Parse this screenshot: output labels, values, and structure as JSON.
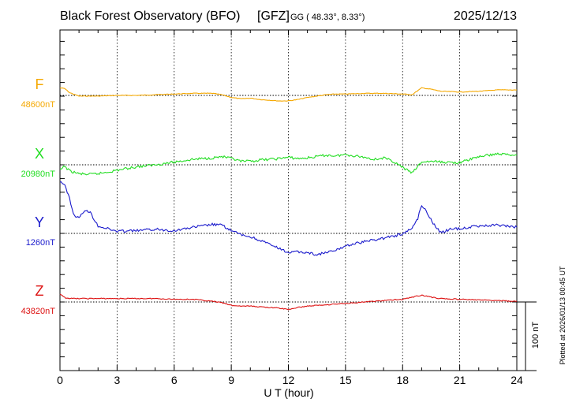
{
  "header": {
    "observatory": "Black Forest Observatory (BFO)",
    "institute": "[GFZ]",
    "coords": "GG ( 48.33°,  8.33°)",
    "date": "2025/12/13"
  },
  "footer": {
    "plotted": "Plotted at 2026/01/13 00:45 UT",
    "scale": "100 nT"
  },
  "chart_data": {
    "type": "line",
    "title": "Black Forest Observatory (BFO)",
    "xlabel": "U T (hour)",
    "ylabel": "",
    "xlim": [
      0,
      24
    ],
    "xticks": [
      "0",
      "3",
      "6",
      "9",
      "12",
      "15",
      "18",
      "21",
      "24"
    ],
    "grid": true,
    "scale_bar_nT": 100,
    "series": [
      {
        "name": "F",
        "baseline_label": "48600nT",
        "color": "#f5a800",
        "baseline": 48600,
        "x": [
          0,
          0.25,
          0.5,
          1,
          1.5,
          2,
          3,
          4,
          5,
          6,
          7,
          8,
          8.5,
          9,
          9.5,
          10,
          10.5,
          11,
          11.5,
          12,
          12.5,
          13,
          13.5,
          14,
          14.5,
          15,
          16,
          17,
          18,
          18.5,
          19,
          19.5,
          20,
          21,
          22,
          23,
          24
        ],
        "y": [
          48611,
          48610,
          48604,
          48599,
          48599,
          48599,
          48600,
          48600,
          48601,
          48602,
          48603,
          48603,
          48601,
          48597,
          48595,
          48596,
          48594,
          48593,
          48592,
          48592,
          48594,
          48597,
          48599,
          48601,
          48602,
          48602,
          48603,
          48603,
          48602,
          48601,
          48611,
          48609,
          48606,
          48605,
          48606,
          48608,
          48608
        ]
      },
      {
        "name": "X",
        "baseline_label": "20980nT",
        "color": "#22dd22",
        "baseline": 20980,
        "x": [
          0,
          0.25,
          0.5,
          1,
          1.5,
          2,
          3,
          4,
          5,
          6,
          7,
          8,
          8.5,
          9,
          9.5,
          10,
          10.5,
          11,
          11.5,
          12,
          12.5,
          13,
          13.5,
          14,
          14.5,
          15,
          16,
          16.5,
          17,
          17.5,
          18,
          18.5,
          19,
          19.5,
          20,
          21,
          22,
          23,
          24
        ],
        "y": [
          20972,
          20978,
          20971,
          20967,
          20966,
          20967,
          20972,
          20977,
          20980,
          20984,
          20988,
          20990,
          20992,
          20989,
          20985,
          20985,
          20987,
          20988,
          20989,
          20991,
          20989,
          20990,
          20992,
          20994,
          20993,
          20995,
          20991,
          20988,
          20990,
          20985,
          20976,
          20968,
          20984,
          20985,
          20984,
          20983,
          20992,
          20996,
          20994
        ]
      },
      {
        "name": "Y",
        "baseline_label": "1260nT",
        "color": "#1a1acc",
        "baseline": 1260,
        "x": [
          0,
          0.2,
          0.5,
          0.7,
          1,
          1.3,
          1.6,
          2,
          3,
          4,
          5,
          6,
          7,
          8,
          8.5,
          9,
          9.5,
          10,
          10.5,
          11,
          11.5,
          12,
          12.5,
          13,
          13.5,
          14,
          14.5,
          15,
          16,
          17,
          18,
          18.5,
          18.8,
          19,
          19.3,
          19.6,
          20,
          20.5,
          21,
          22,
          23,
          24
        ],
        "y": [
          1335,
          1333,
          1312,
          1288,
          1282,
          1294,
          1290,
          1271,
          1263,
          1264,
          1266,
          1264,
          1269,
          1273,
          1272,
          1264,
          1258,
          1255,
          1250,
          1244,
          1238,
          1232,
          1233,
          1232,
          1229,
          1232,
          1235,
          1242,
          1248,
          1253,
          1259,
          1268,
          1282,
          1302,
          1290,
          1275,
          1261,
          1266,
          1267,
          1271,
          1272,
          1269
        ]
      },
      {
        "name": "Z",
        "baseline_label": "43820nT",
        "color": "#dd1111",
        "baseline": 43820,
        "x": [
          0,
          0.3,
          0.6,
          1,
          2,
          3,
          4,
          5,
          6,
          7,
          8,
          8.5,
          9,
          9.5,
          10,
          10.5,
          11,
          11.5,
          12,
          12.5,
          13,
          14,
          15,
          16,
          17,
          18,
          18.5,
          19,
          19.5,
          20,
          21,
          22,
          23,
          24
        ],
        "y": [
          43831,
          43826,
          43825,
          43825,
          43825,
          43825,
          43825,
          43825,
          43824,
          43824,
          43821,
          43819,
          43815,
          43814,
          43814,
          43813,
          43812,
          43811,
          43809,
          43812,
          43814,
          43816,
          43818,
          43820,
          43822,
          43824,
          43827,
          43830,
          43827,
          43825,
          43824,
          43823,
          43822,
          43821
        ]
      }
    ]
  }
}
